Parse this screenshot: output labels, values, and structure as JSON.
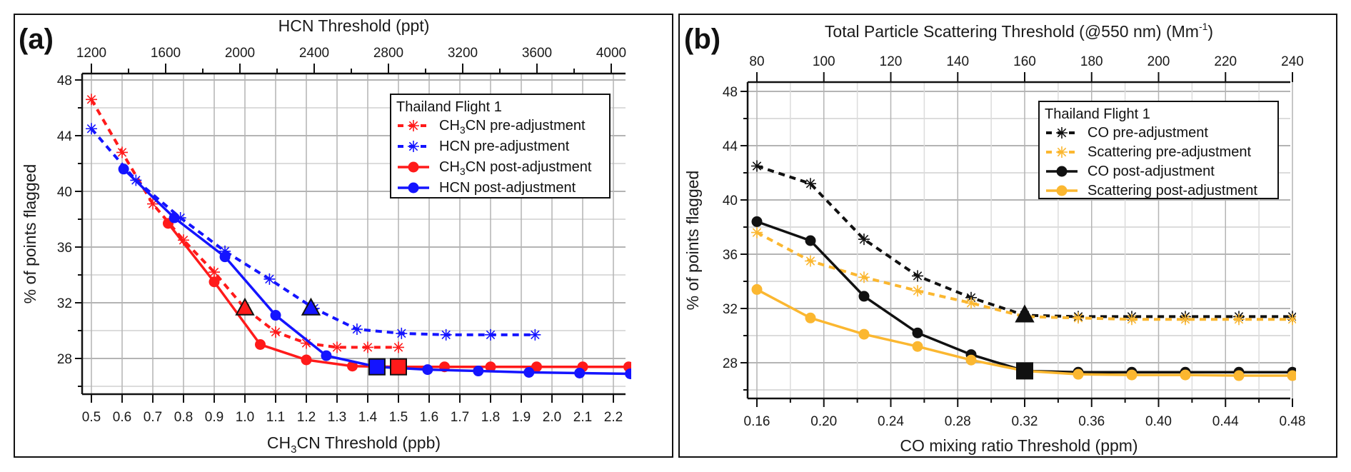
{
  "chart_data": [
    {
      "type": "line",
      "panel_label": "(a)",
      "title": "",
      "xlabel": "CH3CN Threshold (ppb)",
      "xlabel_parts": {
        "pre": "CH",
        "sub": "3",
        "post": "CN Threshold (ppb)"
      },
      "x2label": "HCN Threshold (ppt)",
      "ylabel": "% of points flagged",
      "xlim": [
        0.45,
        2.24
      ],
      "x2lim": [
        1080,
        4077
      ],
      "ylim": [
        25.4,
        48.6
      ],
      "xticks": [
        "0.5",
        "0.6",
        "0.7",
        "0.8",
        "0.9",
        "1.0",
        "1.1",
        "1.2",
        "1.3",
        "1.4",
        "1.5",
        "1.6",
        "1.7",
        "1.8",
        "1.9",
        "2.0",
        "2.1",
        "2.2"
      ],
      "x2ticks": [
        "1200",
        "1600",
        "2000",
        "2400",
        "2800",
        "3200",
        "3600",
        "4000"
      ],
      "yticks": [
        "28",
        "32",
        "36",
        "40",
        "44",
        "48"
      ],
      "grid": true,
      "legend": {
        "title": "Thailand Flight 1",
        "placement": "top-right",
        "entries": [
          {
            "pre": "CH",
            "sub": "3",
            "post": "CN pre-adjustment"
          },
          {
            "pre": "HCN pre-adjustment",
            "sub": "",
            "post": ""
          },
          {
            "pre": "CH",
            "sub": "3",
            "post": "CN post-adjustment"
          },
          {
            "pre": "HCN post-adjustment",
            "sub": "",
            "post": ""
          }
        ]
      },
      "series": [
        {
          "name": "CH3CN pre-adjustment",
          "color": "#ff1a1a",
          "style": "dashed",
          "marker": "asterisk",
          "x": [
            0.5,
            0.6,
            0.7,
            0.8,
            0.9,
            1.0,
            1.1,
            1.2,
            1.3,
            1.4,
            1.5
          ],
          "y": [
            46.6,
            42.8,
            39.1,
            36.5,
            34.2,
            31.6,
            29.9,
            29.1,
            28.8,
            28.8,
            28.8
          ]
        },
        {
          "name": "HCN pre-adjustment",
          "color": "#1414ff",
          "style": "dashed",
          "marker": "asterisk",
          "x": [
            0.5,
            0.645,
            0.79,
            0.935,
            1.08,
            1.225,
            1.365,
            1.51,
            1.655,
            1.8,
            1.945
          ],
          "y": [
            44.5,
            40.8,
            38.1,
            35.7,
            33.7,
            31.6,
            30.1,
            29.8,
            29.7,
            29.7,
            29.7
          ]
        },
        {
          "name": "CH3CN post-adjustment",
          "color": "#ff1a1a",
          "style": "solid",
          "marker": "circle",
          "x": [
            0.75,
            0.9,
            1.05,
            1.2,
            1.35,
            1.5,
            1.65,
            1.8,
            1.95,
            2.1,
            2.25
          ],
          "y": [
            37.7,
            33.5,
            29.0,
            27.9,
            27.45,
            27.4,
            27.4,
            27.4,
            27.4,
            27.4,
            27.4
          ]
        },
        {
          "name": "HCN post-adjustment",
          "color": "#1414ff",
          "style": "solid",
          "marker": "circle",
          "x": [
            0.605,
            0.77,
            0.935,
            1.1,
            1.265,
            1.43,
            1.595,
            1.76,
            1.925,
            2.09,
            2.255
          ],
          "y": [
            41.6,
            38.1,
            35.3,
            31.1,
            28.2,
            27.4,
            27.2,
            27.1,
            27.0,
            26.95,
            26.9
          ]
        }
      ],
      "annotations": [
        {
          "type": "triangle",
          "color": "#ff1a1a",
          "x": 1.0,
          "y": 31.6
        },
        {
          "type": "triangle",
          "color": "#1414ff",
          "x": 1.215,
          "y": 31.6
        },
        {
          "type": "square",
          "color": "#1414ff",
          "x": 1.43,
          "y": 27.4
        },
        {
          "type": "square",
          "color": "#ff1a1a",
          "x": 1.5,
          "y": 27.4
        }
      ]
    },
    {
      "type": "line",
      "panel_label": "(b)",
      "title": "",
      "xlabel": "CO mixing ratio Threshold (ppm)",
      "x2label": "Total Particle Scattering Threshold (@550 nm) (Mm-1)",
      "x2label_parts": {
        "pre": "Total Particle Scattering Threshold (@550 nm) (Mm",
        "sup": "-1",
        "post": ")"
      },
      "ylabel": "% of points flagged",
      "xlim": [
        0.155,
        0.48
      ],
      "x2lim": [
        77.5,
        240
      ],
      "ylim": [
        25.4,
        48.6
      ],
      "xticks": [
        "0.16",
        "0.20",
        "0.24",
        "0.28",
        "0.32",
        "0.36",
        "0.40",
        "0.44",
        "0.48"
      ],
      "x2ticks": [
        "80",
        "100",
        "120",
        "140",
        "160",
        "180",
        "200",
        "220",
        "240"
      ],
      "yticks": [
        "28",
        "32",
        "36",
        "40",
        "44",
        "48"
      ],
      "grid": true,
      "legend": {
        "title": "Thailand Flight 1",
        "placement": "top-right",
        "entries": [
          {
            "pre": "CO pre-adjustment",
            "sub": "",
            "post": ""
          },
          {
            "pre": "Scattering pre-adjustment",
            "sub": "",
            "post": ""
          },
          {
            "pre": "CO post-adjustment",
            "sub": "",
            "post": ""
          },
          {
            "pre": "Scattering post-adjustment",
            "sub": "",
            "post": ""
          }
        ]
      },
      "series": [
        {
          "name": "CO pre-adjustment",
          "color": "#111111",
          "style": "dashed",
          "marker": "asterisk",
          "x": [
            0.16,
            0.192,
            0.224,
            0.256,
            0.288,
            0.32,
            0.352,
            0.384,
            0.416,
            0.448,
            0.48
          ],
          "y": [
            42.5,
            41.2,
            37.1,
            34.4,
            32.8,
            31.5,
            31.4,
            31.4,
            31.4,
            31.4,
            31.4
          ]
        },
        {
          "name": "Scattering pre-adjustment",
          "color": "#fbb730",
          "style": "dashed",
          "marker": "asterisk",
          "x": [
            0.16,
            0.192,
            0.224,
            0.256,
            0.288,
            0.32,
            0.352,
            0.384,
            0.416,
            0.448,
            0.48
          ],
          "y": [
            37.6,
            35.5,
            34.3,
            33.3,
            32.4,
            31.4,
            31.3,
            31.2,
            31.2,
            31.2,
            31.2
          ]
        },
        {
          "name": "CO post-adjustment",
          "color": "#111111",
          "style": "solid",
          "marker": "circle",
          "x": [
            0.16,
            0.192,
            0.224,
            0.256,
            0.288,
            0.32,
            0.352,
            0.384,
            0.416,
            0.448,
            0.48
          ],
          "y": [
            38.4,
            37.0,
            32.9,
            30.2,
            28.6,
            27.4,
            27.3,
            27.3,
            27.3,
            27.3,
            27.3
          ]
        },
        {
          "name": "Scattering post-adjustment",
          "color": "#fbb730",
          "style": "solid",
          "marker": "circle",
          "x": [
            0.16,
            0.192,
            0.224,
            0.256,
            0.288,
            0.32,
            0.352,
            0.384,
            0.416,
            0.448,
            0.48
          ],
          "y": [
            33.4,
            31.3,
            30.1,
            29.2,
            28.2,
            27.4,
            27.15,
            27.1,
            27.1,
            27.05,
            27.05
          ]
        }
      ],
      "annotations": [
        {
          "type": "triangle",
          "color": "#111111",
          "x": 0.32,
          "y": 31.5
        },
        {
          "type": "square",
          "color": "#111111",
          "x": 0.32,
          "y": 27.4
        }
      ]
    }
  ]
}
